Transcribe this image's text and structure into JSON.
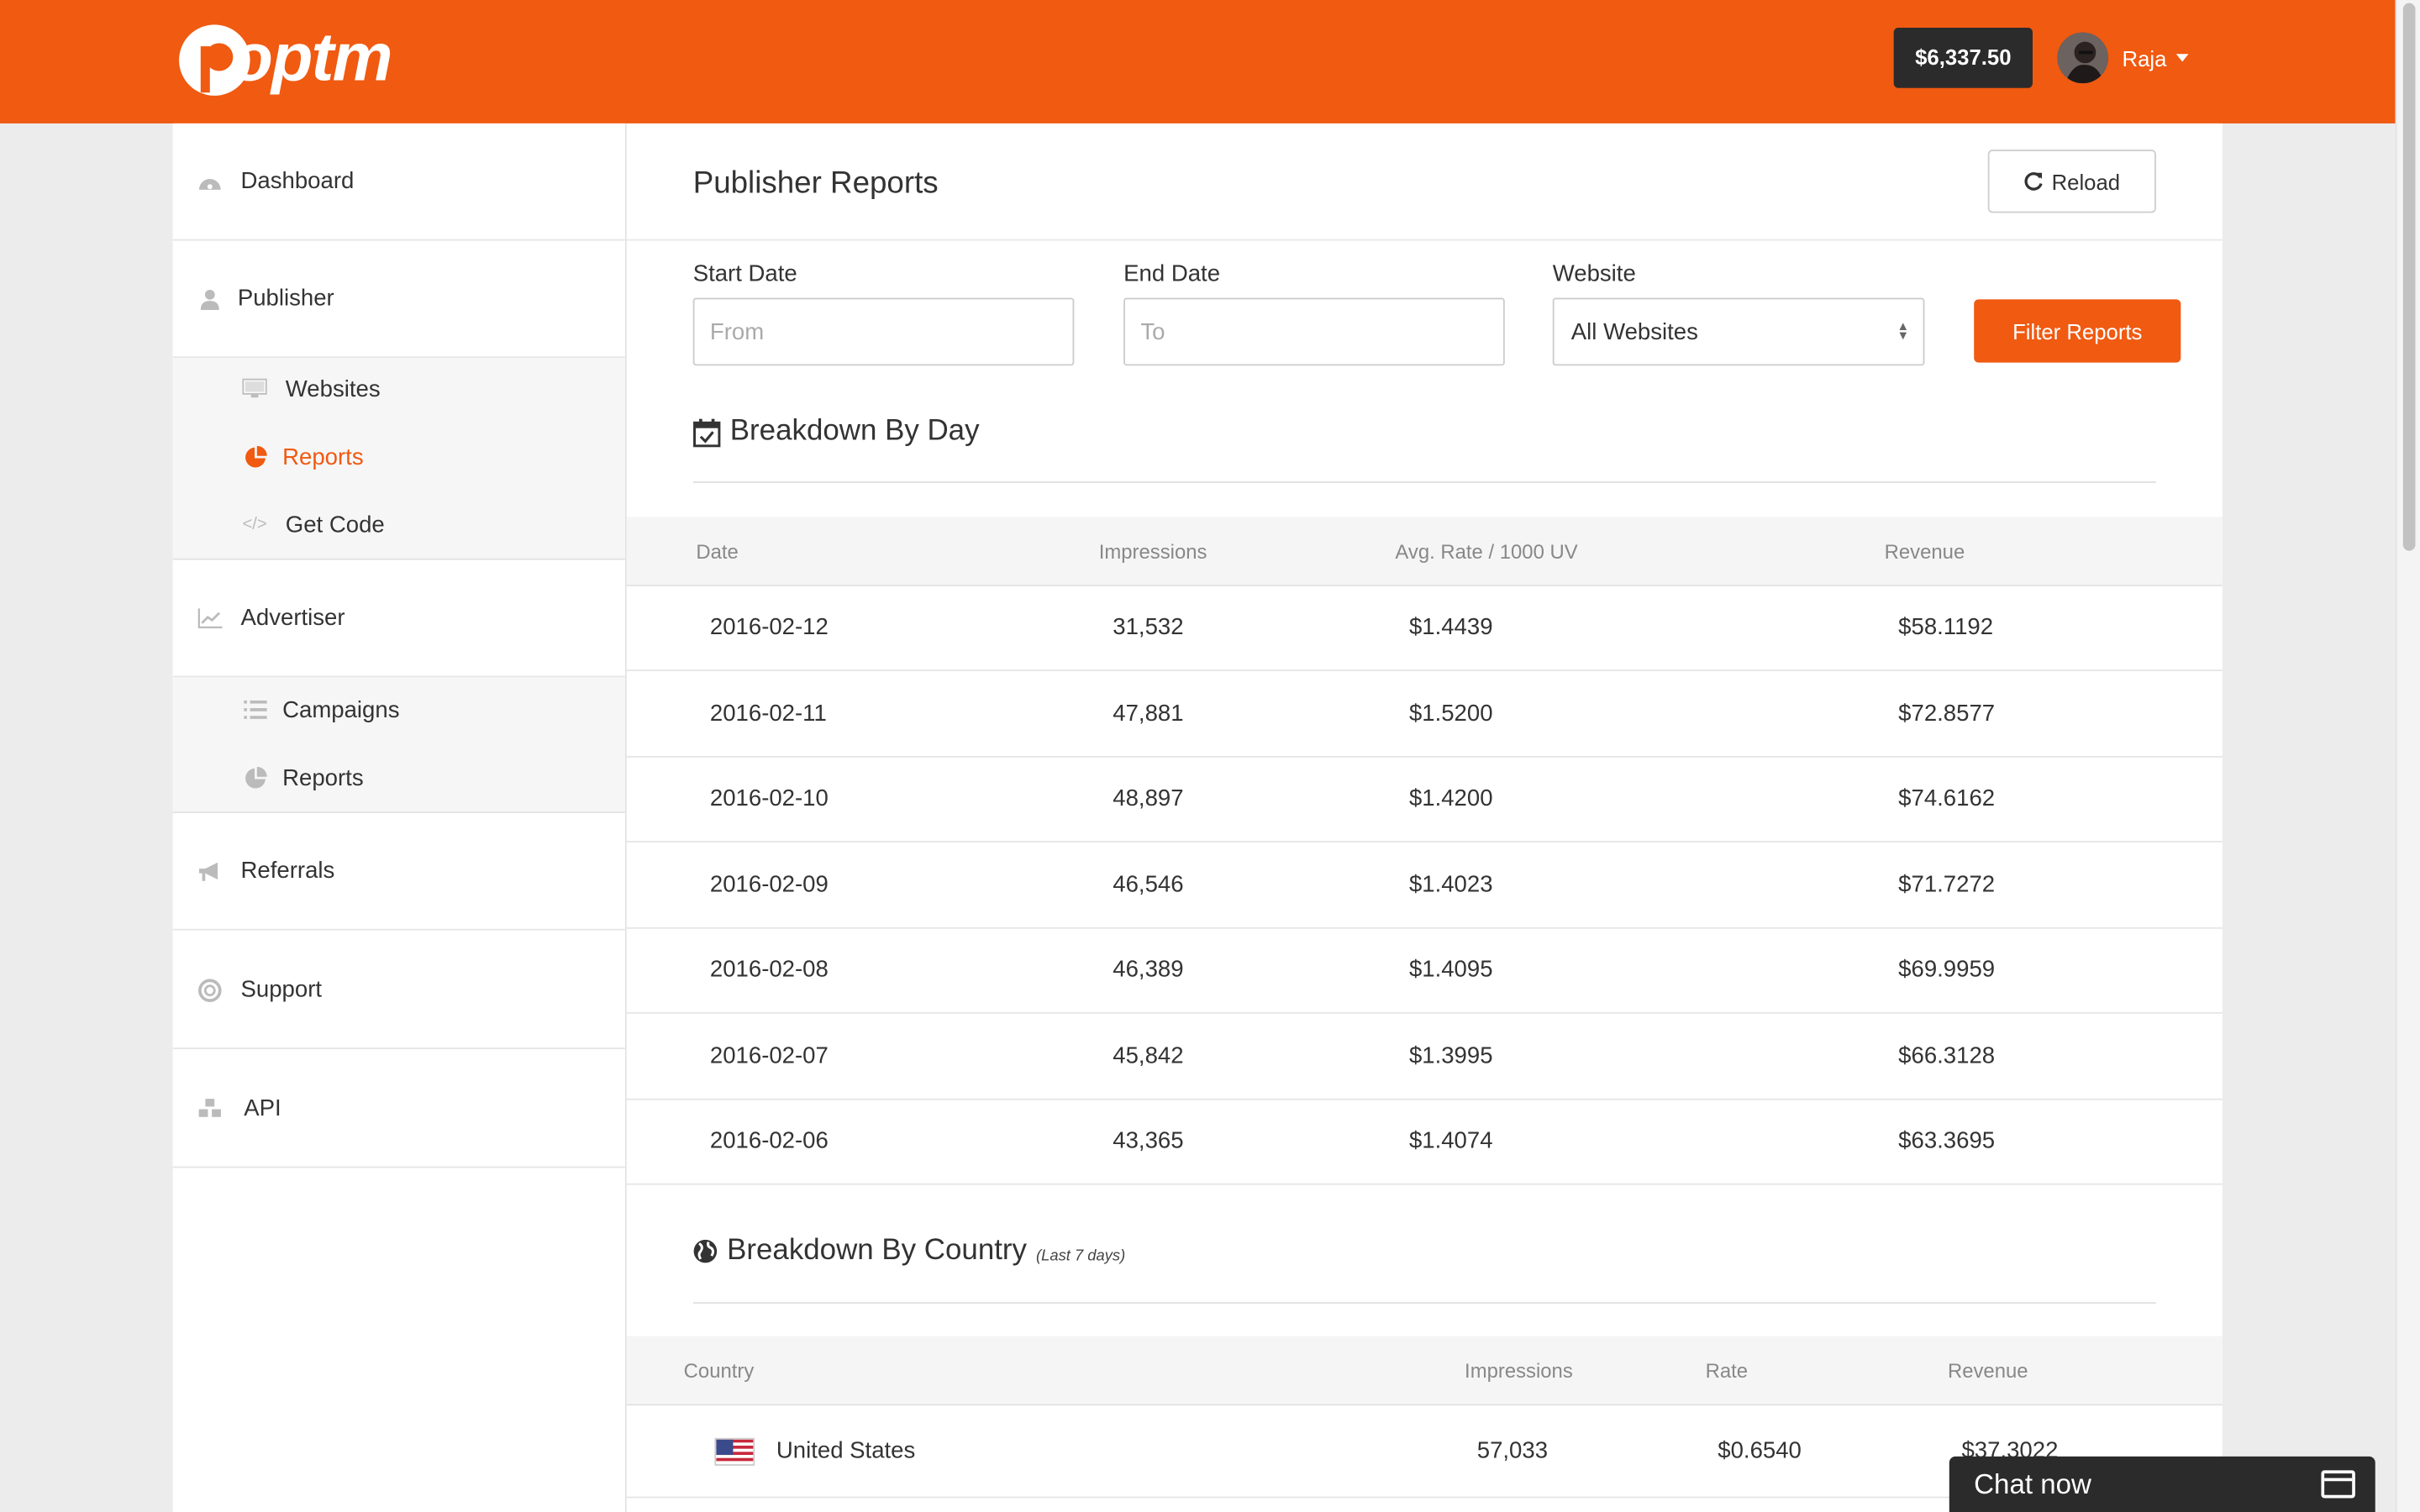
{
  "header": {
    "logo_text": "poptm",
    "balance": "$6,337.50",
    "user_name": "Raja"
  },
  "sidebar": {
    "dashboard": "Dashboard",
    "publisher": "Publisher",
    "publisher_items": [
      "Websites",
      "Reports",
      "Get Code"
    ],
    "advertiser": "Advertiser",
    "advertiser_items": [
      "Campaigns",
      "Reports"
    ],
    "referrals": "Referrals",
    "support": "Support",
    "api": "API",
    "active_item": "publisher.Reports"
  },
  "page": {
    "title": "Publisher Reports",
    "reload_label": "Reload"
  },
  "filters": {
    "start_label": "Start Date",
    "start_placeholder": "From",
    "end_label": "End Date",
    "end_placeholder": "To",
    "website_label": "Website",
    "website_value": "All Websites",
    "submit_label": "Filter Reports"
  },
  "by_day": {
    "title": "Breakdown By Day",
    "columns": [
      "Date",
      "Impressions",
      "Avg. Rate / 1000 UV",
      "Revenue"
    ],
    "rows": [
      [
        "2016-02-12",
        "31,532",
        "$1.4439",
        "$58.1192"
      ],
      [
        "2016-02-11",
        "47,881",
        "$1.5200",
        "$72.8577"
      ],
      [
        "2016-02-10",
        "48,897",
        "$1.4200",
        "$74.6162"
      ],
      [
        "2016-02-09",
        "46,546",
        "$1.4023",
        "$71.7272"
      ],
      [
        "2016-02-08",
        "46,389",
        "$1.4095",
        "$69.9959"
      ],
      [
        "2016-02-07",
        "45,842",
        "$1.3995",
        "$66.3128"
      ],
      [
        "2016-02-06",
        "43,365",
        "$1.4074",
        "$63.3695"
      ]
    ]
  },
  "by_country": {
    "title": "Breakdown By Country",
    "subtitle": "(Last 7 days)",
    "columns": [
      "Country",
      "Impressions",
      "Rate",
      "Revenue"
    ],
    "rows": [
      [
        "United States",
        "57,033",
        "$0.6540",
        "$37.3022"
      ]
    ]
  },
  "chat": {
    "label": "Chat now"
  },
  "colors": {
    "brand": "#f05a11",
    "dark": "#2b2b2b"
  }
}
